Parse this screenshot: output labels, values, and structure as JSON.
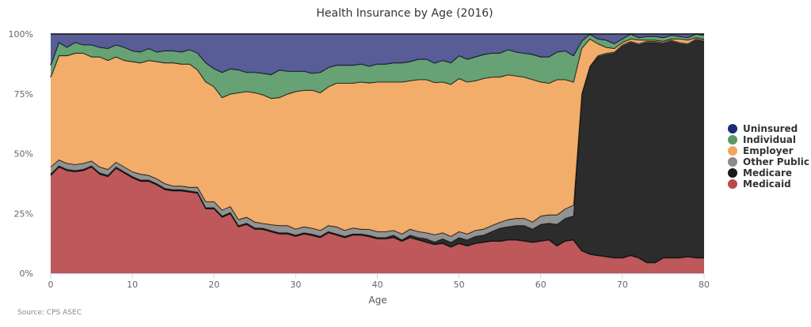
{
  "chart_data": {
    "type": "area",
    "stacking": "percent",
    "title": "Health Insurance by Age (2016)",
    "xlabel": "Age",
    "ylabel": "",
    "xlim": [
      0,
      80
    ],
    "ylim": [
      0,
      100
    ],
    "x_ticks": [
      "0",
      "10",
      "20",
      "30",
      "40",
      "50",
      "60",
      "70",
      "80"
    ],
    "y_ticks": [
      "0%",
      "25%",
      "50%",
      "75%",
      "100%"
    ],
    "legend_position": "right",
    "source": "Source: CPS ASEC",
    "x": [
      0,
      1,
      2,
      3,
      4,
      5,
      6,
      7,
      8,
      9,
      10,
      11,
      12,
      13,
      14,
      15,
      16,
      17,
      18,
      19,
      20,
      21,
      22,
      23,
      24,
      25,
      26,
      27,
      28,
      29,
      30,
      31,
      32,
      33,
      34,
      35,
      36,
      37,
      38,
      39,
      40,
      41,
      42,
      43,
      44,
      45,
      46,
      47,
      48,
      49,
      50,
      51,
      52,
      53,
      54,
      55,
      56,
      57,
      58,
      59,
      60,
      61,
      62,
      63,
      64,
      65,
      66,
      67,
      68,
      69,
      70,
      71,
      72,
      73,
      74,
      75,
      76,
      77,
      78,
      79,
      80
    ],
    "series": [
      {
        "name": "Medicaid",
        "color": "#b84a4c",
        "values": [
          41,
          44.5,
          43,
          42.5,
          43,
          44.5,
          41.5,
          40.5,
          44,
          42,
          40,
          38.5,
          38.5,
          37,
          35,
          34.5,
          34.5,
          34,
          33.5,
          27,
          27,
          23.5,
          25,
          19.5,
          20.5,
          18.5,
          18.5,
          17.5,
          16.5,
          16.5,
          15.5,
          16.5,
          16,
          15,
          17,
          16,
          15,
          16,
          16,
          15.5,
          14.5,
          14.5,
          15,
          13.5,
          15,
          14,
          13,
          12,
          12.5,
          11,
          12.5,
          11.5,
          12.5,
          13,
          13.5,
          13.5,
          14,
          14,
          13.5,
          13,
          13.5,
          14,
          11.5,
          13.5,
          14,
          9.5,
          8,
          7.5,
          7,
          6.5,
          6.5,
          7.5,
          6.5,
          4.5,
          4.5,
          6.5,
          6.5,
          6.5,
          7,
          6.5,
          6.5
        ]
      },
      {
        "name": "Medicare",
        "color": "#1a1a1a",
        "values": [
          0.5,
          0.5,
          0.5,
          0.5,
          0.5,
          0.5,
          0.5,
          0.5,
          0.5,
          0.5,
          0.5,
          0.5,
          0.5,
          0.5,
          0.5,
          0.5,
          0.5,
          0.5,
          0.5,
          0.5,
          0.5,
          0.5,
          0.5,
          0.5,
          0.5,
          0.5,
          0.5,
          0.5,
          0.5,
          0.5,
          0.5,
          0.5,
          0.5,
          0.5,
          0.5,
          0.5,
          0.5,
          0.5,
          0.5,
          0.5,
          0.5,
          0.5,
          1,
          0.5,
          1,
          1,
          1.5,
          1,
          2,
          2,
          2.5,
          2.5,
          3,
          3,
          4,
          5.5,
          5.5,
          6,
          6.5,
          5.5,
          7,
          7,
          9,
          9.5,
          10,
          65,
          78,
          83,
          84.5,
          85.5,
          88.5,
          89,
          89.5,
          92,
          92,
          90,
          90.5,
          89.5,
          88.5,
          91,
          90.5
        ]
      },
      {
        "name": "Other Public",
        "color": "#8a8a8a",
        "values": [
          3,
          2.5,
          2.5,
          2.5,
          2.5,
          2,
          2.5,
          2.5,
          2,
          2,
          2,
          2.5,
          2,
          2,
          2,
          1.5,
          1.5,
          1.5,
          2,
          2.5,
          2.5,
          2.5,
          2.5,
          2.5,
          2.5,
          2.5,
          2,
          2.5,
          3,
          3,
          2.5,
          2.5,
          2.5,
          2.5,
          2.5,
          3,
          2.5,
          2.5,
          2,
          2.5,
          2.5,
          2.5,
          2,
          2.5,
          2.5,
          2.5,
          2.5,
          3,
          2.5,
          2.5,
          2.5,
          2.5,
          2.5,
          2.5,
          2.5,
          2.5,
          3,
          3,
          3,
          3,
          3.5,
          3.5,
          4,
          4,
          4.5,
          0.5,
          0.5,
          0.5,
          0.5,
          0.5,
          0.5,
          0.5,
          0.5,
          0.5,
          0.5,
          0.5,
          0.5,
          0.5,
          0.5,
          0.5,
          0.5
        ]
      },
      {
        "name": "Employer",
        "color": "#f2a65e",
        "values": [
          37.5,
          43.5,
          45,
          46.5,
          46,
          43.5,
          46,
          45.5,
          44,
          44.5,
          46,
          46.5,
          48,
          49,
          50.5,
          51.5,
          51,
          51.5,
          49,
          50,
          48,
          47,
          47,
          53,
          52.5,
          54,
          54,
          53,
          53.5,
          55,
          57.5,
          57,
          58,
          57.5,
          58,
          60,
          61.5,
          60.5,
          61.5,
          61.5,
          62.5,
          62.5,
          62,
          63.5,
          62,
          63.5,
          64,
          63,
          63,
          63.5,
          64,
          63.5,
          62.5,
          63,
          62,
          61,
          60.5,
          59.5,
          59,
          59.5,
          56,
          55,
          56.5,
          54,
          51.5,
          19,
          11.5,
          5,
          2.5,
          1.5,
          1,
          1,
          1.5,
          0.5,
          0.5,
          0.5,
          0.5,
          1.5,
          1.5,
          0.5,
          0.5
        ]
      },
      {
        "name": "Individual",
        "color": "#5a9a68",
        "values": [
          5,
          5.5,
          3.5,
          4.5,
          3.5,
          5,
          4,
          5,
          5,
          5.5,
          4.5,
          4.5,
          5,
          4,
          5,
          5,
          5,
          6,
          7,
          8,
          7.5,
          10.5,
          10.5,
          9.5,
          8,
          8.5,
          9,
          10,
          11.5,
          9.5,
          8.5,
          8,
          7,
          8.5,
          8,
          7.5,
          7.5,
          7.5,
          7.5,
          7,
          7.5,
          7.5,
          8,
          8,
          8,
          8.5,
          8.5,
          8,
          9,
          9,
          9.5,
          9.5,
          10,
          10,
          10,
          10,
          10.5,
          10,
          10,
          10.5,
          10.5,
          11,
          11.5,
          12,
          11,
          3,
          2,
          2,
          3,
          2,
          1.5,
          2,
          1,
          1.5,
          1.5,
          1.5,
          1.5,
          1,
          1,
          1.5,
          1.5
        ]
      },
      {
        "name": "Uninsured",
        "color": "#4a4f8e",
        "values": [
          13,
          3.5,
          5.5,
          3.5,
          4.5,
          4.5,
          5.5,
          6,
          4.5,
          5.5,
          7,
          7.5,
          6,
          7.5,
          7,
          7,
          7.5,
          6.5,
          8,
          12,
          14.5,
          16,
          14.5,
          15,
          16,
          16,
          16.5,
          17,
          15,
          15.5,
          15.5,
          15.5,
          16.5,
          16,
          14,
          13,
          13,
          13,
          12.5,
          13.5,
          12.5,
          12.5,
          12,
          12,
          11.5,
          10.5,
          10.5,
          12,
          11,
          12,
          9,
          10.5,
          9.5,
          8.5,
          8,
          8,
          6.5,
          7.5,
          8,
          8.5,
          9.5,
          9.5,
          7.5,
          7,
          9,
          3,
          0,
          2,
          2.5,
          4,
          2,
          0,
          1.5,
          1,
          1,
          1.5,
          0.5,
          1,
          1.5,
          0,
          0.5
        ]
      }
    ]
  }
}
